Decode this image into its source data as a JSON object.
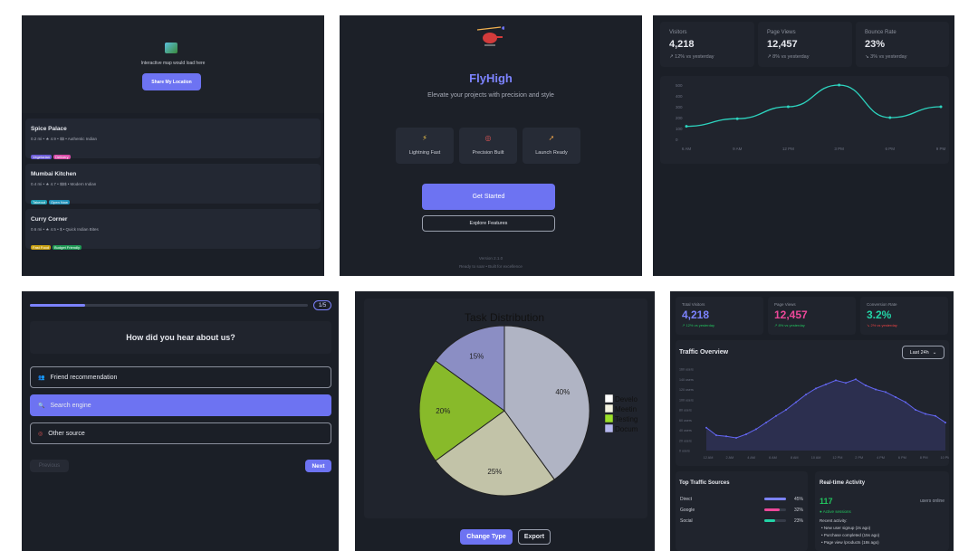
{
  "restaurants": {
    "map_placeholder": "Interactive map would load here",
    "share_button": "Share My Location",
    "map_icon": "map-icon",
    "items": [
      {
        "name": "Spice Palace",
        "meta": "0.2 mi • ★ 4.9 • $$ • Authentic Indian",
        "tags": [
          {
            "label": "Vegetarian",
            "color": "#6b5bd6"
          },
          {
            "label": "Delivery",
            "color": "#d94ca8"
          }
        ]
      },
      {
        "name": "Mumbai Kitchen",
        "meta": "0.4 mi • ★ 4.7 • $$$ • Modern Indian",
        "tags": [
          {
            "label": "Takeout",
            "color": "#1e9ab0"
          },
          {
            "label": "Open Now",
            "color": "#1e8fb8"
          }
        ]
      },
      {
        "name": "Curry Corner",
        "meta": "0.6 mi • ★ 4.5 • $ • Quick Indian Bites",
        "tags": [
          {
            "label": "Fast Food",
            "color": "#c9a010"
          },
          {
            "label": "Budget Friendly",
            "color": "#1f9a55"
          }
        ]
      }
    ]
  },
  "flyhigh": {
    "logo_icon": "helicopter-icon",
    "title": "FlyHigh",
    "tagline": "Elevate your projects with precision and style",
    "features": [
      {
        "icon": "lightning-icon",
        "label": "Lightning Fast"
      },
      {
        "icon": "target-icon",
        "label": "Precision Built"
      },
      {
        "icon": "rocket-icon",
        "label": "Launch Ready"
      }
    ],
    "primary_button": "Get Started",
    "secondary_button": "Explore Features",
    "version": "Version 2.1.0",
    "footer": "Ready to soar  •  Built for excellence"
  },
  "visitors_dash": {
    "stats": [
      {
        "label": "Visitors",
        "value": "4,218",
        "delta": "↗ 12% vs yesterday"
      },
      {
        "label": "Page Views",
        "value": "12,457",
        "delta": "↗ 8% vs yesterday"
      },
      {
        "label": "Bounce Rate",
        "value": "23%",
        "delta": "↘ 3% vs yesterday"
      }
    ]
  },
  "survey": {
    "progress": 0.2,
    "step": "1/5",
    "question": "How did you hear about us?",
    "options": [
      {
        "icon": "people-icon",
        "label": "Friend recommendation",
        "selected": false
      },
      {
        "icon": "search-icon",
        "label": "Search engine",
        "selected": true
      },
      {
        "icon": "target-icon",
        "label": "Other source",
        "selected": false
      }
    ],
    "prev_button": "Previous",
    "next_button": "Next"
  },
  "task_chart": {
    "change_type_button": "Change Type",
    "export_button": "Export"
  },
  "analytics": {
    "stats": [
      {
        "label": "Total Visitors",
        "value": "4,218",
        "delta": "↗ 12% vs yesterday",
        "color": "#7c83ff",
        "delta_color": "#22c55e"
      },
      {
        "label": "Page Views",
        "value": "12,457",
        "delta": "↗ 8% vs yesterday",
        "color": "#ec4899",
        "delta_color": "#22c55e"
      },
      {
        "label": "Conversion Rate",
        "value": "3.2%",
        "delta": "↘ 2% vs yesterday",
        "color": "#22d3a6",
        "delta_color": "#ef4444"
      }
    ],
    "traffic_title": "Traffic Overview",
    "range_select": "Last 24h",
    "sources_title": "Top Traffic Sources",
    "sources": [
      {
        "name": "Direct",
        "pct": "45%",
        "value": 0.45,
        "color": "#7c83ff"
      },
      {
        "name": "Google",
        "pct": "32%",
        "value": 0.32,
        "color": "#ec4899"
      },
      {
        "name": "Social",
        "pct": "23%",
        "value": 0.23,
        "color": "#22d3a6"
      }
    ],
    "realtime_title": "Real-time Activity",
    "online_count": "117",
    "online_label": "users online",
    "active_sessions": "● Active sessions",
    "recent_label": "Recent activity:",
    "activity": [
      "• New user signup (2s ago)",
      "• Purchase completed (15s ago)",
      "• Page view /products (18s ago)"
    ]
  },
  "chart_data": [
    {
      "type": "line",
      "x": [
        "6 AM",
        "9 AM",
        "12 PM",
        "3 PM",
        "6 PM",
        "9 PM"
      ],
      "values": [
        120,
        190,
        300,
        500,
        200,
        300
      ],
      "ylim": [
        0,
        500
      ],
      "yticks": [
        "500",
        "400",
        "300",
        "200",
        "100",
        "0"
      ],
      "color": "#2dd4bf"
    },
    {
      "type": "pie",
      "title": "Task Distribution",
      "labels": [
        "Development",
        "Meetings",
        "Testing",
        "Documentation"
      ],
      "legend": [
        "Develo",
        "Meetin",
        "Testing",
        "Docum"
      ],
      "values": [
        40,
        25,
        20,
        15
      ],
      "pct_labels": [
        "40%",
        "25%",
        "20%",
        "15%"
      ],
      "colors": [
        "#b0b4c4",
        "#c2c3a8",
        "#88ba2a",
        "#8b8ec4"
      ],
      "legend_colors": [
        "#ffffff",
        "#f3f3e0",
        "#9be02a",
        "#b4b6ee"
      ]
    },
    {
      "type": "area",
      "x_ticks": [
        "12 AM",
        "2 AM",
        "4 AM",
        "6 AM",
        "8 AM",
        "10 AM",
        "12 PM",
        "2 PM",
        "4 PM",
        "6 PM",
        "8 PM",
        "10 PM"
      ],
      "y_ticks": [
        "160 users",
        "140 users",
        "120 users",
        "100 users",
        "80 users",
        "60 users",
        "40 users",
        "20 users",
        "0 users"
      ],
      "ylim": [
        0,
        160
      ],
      "values": [
        45,
        30,
        28,
        25,
        32,
        42,
        55,
        68,
        80,
        95,
        110,
        122,
        130,
        138,
        133,
        140,
        128,
        120,
        115,
        105,
        95,
        80,
        72,
        68,
        55
      ],
      "color": "#6366f1"
    }
  ]
}
